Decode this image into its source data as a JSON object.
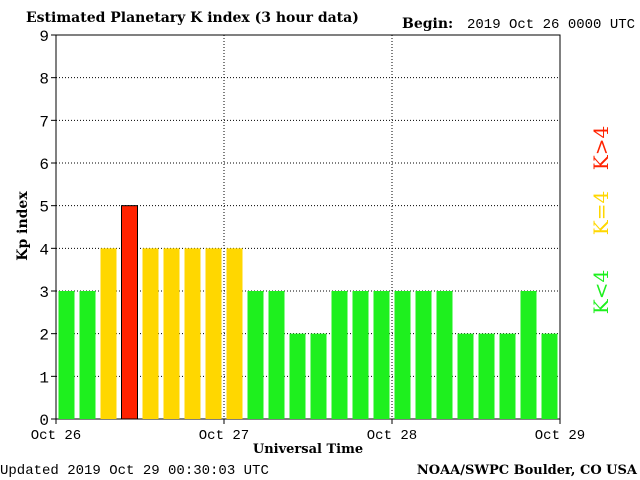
{
  "header": {
    "title": "Estimated Planetary K index (3 hour data)",
    "begin_label": "Begin:",
    "begin_value": "2019 Oct 26 0000 UTC"
  },
  "footer": {
    "updated": "Updated 2019 Oct 29 00:30:03 UTC",
    "credit": "NOAA/SWPC Boulder, CO USA"
  },
  "legend": {
    "low": "K<4",
    "mid": "K=4",
    "high": "K>4"
  },
  "colors": {
    "low": "#1ef01e",
    "mid": "#ffd700",
    "high": "#ff2200"
  },
  "chart_data": {
    "type": "bar",
    "title": "Estimated Planetary K index (3 hour data)",
    "xlabel": "Universal Time",
    "ylabel": "Kp index",
    "ylim": [
      0,
      9
    ],
    "yticks": [
      "0",
      "1",
      "2",
      "3",
      "4",
      "5",
      "6",
      "7",
      "8",
      "9"
    ],
    "xtick_labels": [
      "Oct 26",
      "Oct 27",
      "Oct 28",
      "Oct 29"
    ],
    "grid": true,
    "values": [
      3,
      3,
      4,
      5,
      4,
      4,
      4,
      4,
      4,
      3,
      3,
      2,
      2,
      3,
      3,
      3,
      3,
      3,
      3,
      2,
      2,
      2,
      3,
      2
    ]
  }
}
